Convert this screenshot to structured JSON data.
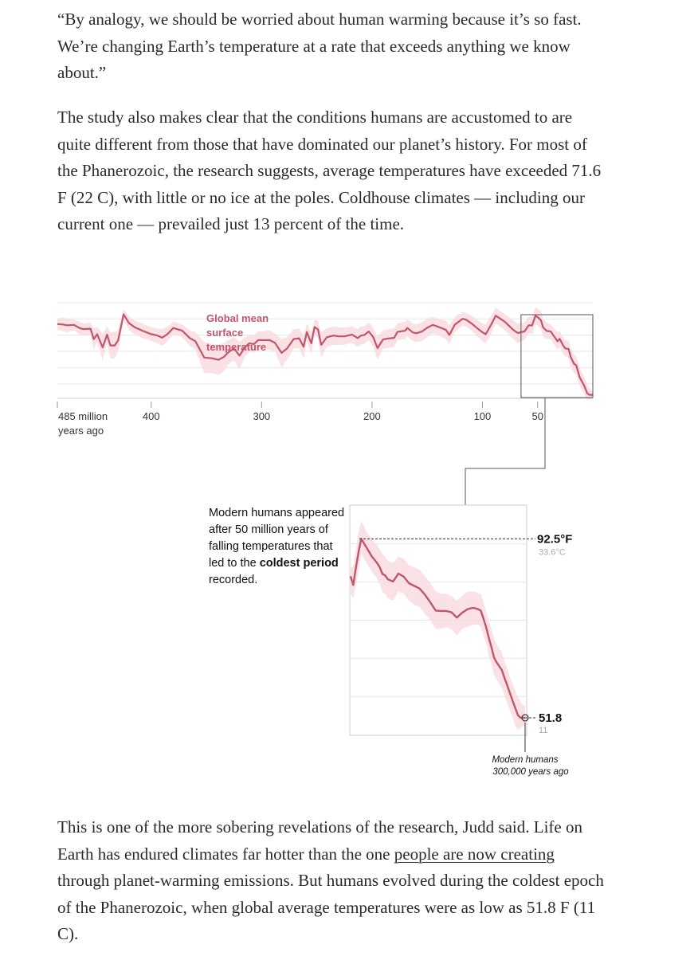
{
  "article": {
    "quote": "“By analogy, we should be worried about human warming because it’s so fast. We’re changing Earth’s temperature at a rate that exceeds anything we know about.”",
    "paragraph2": "The study also makes clear that the conditions humans are accustomed to are quite different from those that have dominated our planet’s history. For most of the Phanerozoic, the research suggests, average temperatures have exceeded 71.6 F (22 C), with little or no ice at the poles. Coldhouse climates — including our current one — prevailed just 13 percent of the time.",
    "paragraph3": {
      "before_link": "This is one of the more sobering revelations of the research, Judd said. Life on Earth has endured climates far hotter than the one ",
      "link_text": "people are now creating",
      "after_link": " through planet-warming emissions. But humans evolved during the coldest epoch of the Phanerozoic, when global average temperatures were as low as 51.8 F (11 C)."
    }
  },
  "colors": {
    "line": "#c0566a",
    "band": "#f7d9df",
    "grid": "#e6e6e6",
    "axis_text": "#333333"
  },
  "chart_data": [
    {
      "type": "area",
      "title": "Global mean surface temperature",
      "label_lines": [
        "Global mean",
        "surface",
        "temperature"
      ],
      "xlabel": "",
      "ylabel": "",
      "x_reversed": true,
      "x_unit_label": "485 million years ago",
      "xlim": [
        485,
        0
      ],
      "ylim": [
        50,
        100
      ],
      "grid": true,
      "x_ticks": [
        {
          "value": 485,
          "label": "485 million",
          "label2": "years ago"
        },
        {
          "value": 400,
          "label": "400"
        },
        {
          "value": 300,
          "label": "300"
        },
        {
          "value": 200,
          "label": "200"
        },
        {
          "value": 100,
          "label": "100"
        },
        {
          "value": 50,
          "label": "50"
        }
      ],
      "series": [
        {
          "x": [
            485,
            480,
            476,
            470,
            465,
            462,
            455,
            452,
            449,
            444,
            440,
            437,
            433,
            430,
            425,
            420,
            415,
            408,
            400,
            395,
            390,
            385,
            380,
            372,
            365,
            360,
            352,
            345,
            339,
            334,
            330,
            325,
            320,
            315,
            311,
            307,
            303,
            298,
            293,
            288,
            282,
            277,
            271,
            266,
            262,
            259,
            255,
            252,
            249,
            246,
            241,
            235,
            230,
            225,
            218,
            213,
            210,
            207,
            203,
            199,
            195,
            190,
            185,
            180,
            177,
            170,
            168,
            163,
            160,
            155,
            150,
            145,
            140,
            133,
            130,
            125,
            118,
            115,
            110,
            105,
            100,
            97,
            92,
            88,
            80,
            72,
            68,
            62,
            58,
            55,
            52,
            50,
            47,
            45,
            42,
            40,
            38,
            35,
            32,
            30,
            27,
            25,
            22,
            20,
            17,
            15,
            12,
            10,
            8,
            5,
            3,
            1,
            0
          ],
          "y": [
            88.2,
            88,
            87.6,
            87.8,
            86.2,
            85.6,
            85.8,
            80.4,
            83,
            76.2,
            82.8,
            77.2,
            77.2,
            79.8,
            93.2,
            88.6,
            86.6,
            84.8,
            83,
            82.4,
            81.2,
            83.2,
            86.2,
            84.8,
            81,
            79.4,
            71,
            70.6,
            69.8,
            71.4,
            73.8,
            75.6,
            72,
            76.4,
            78.3,
            77.9,
            80,
            79.9,
            80,
            78.6,
            73.4,
            75.6,
            80.5,
            80.9,
            76.5,
            84.1,
            78.3,
            86.7,
            85.5,
            77.5,
            81.4,
            82.3,
            81.9,
            81.9,
            82.8,
            81,
            82.3,
            82.6,
            84.4,
            81.6,
            75.8,
            80.3,
            80.8,
            81.1,
            84.2,
            84.8,
            86.2,
            83.9,
            83.5,
            84.3,
            86.3,
            87.8,
            86.8,
            85.2,
            82.6,
            87.9,
            90.9,
            90.5,
            88.6,
            86.2,
            84,
            83,
            88,
            92.5,
            89.5,
            85.2,
            83.6,
            84.4,
            87.6,
            87.5,
            92.5,
            91.8,
            90.2,
            86.5,
            84.7,
            84.6,
            84.3,
            81.8,
            79.4,
            80.6,
            77.3,
            75.7,
            75.4,
            71.3,
            67.8,
            67,
            60.9,
            58.8,
            56.8,
            52.5,
            51.8,
            51.8,
            51.8
          ],
          "upper": [
            91,
            91.5,
            91,
            90.5,
            89.5,
            88.5,
            89,
            86,
            87,
            83,
            87,
            84,
            84,
            85,
            96,
            92,
            90,
            88.5,
            86.5,
            86,
            85.5,
            87,
            89.5,
            88,
            85,
            84,
            79,
            78,
            77.5,
            78.5,
            80,
            81.5,
            79,
            81.5,
            82.5,
            82.5,
            84.5,
            84.5,
            85,
            83.5,
            80.5,
            81.5,
            85.5,
            86,
            82.5,
            88.5,
            84,
            90.5,
            90,
            84,
            86,
            87,
            86.5,
            86.5,
            87,
            85.5,
            87,
            87,
            89,
            86.5,
            81.5,
            85,
            85.5,
            86,
            88.5,
            89.5,
            90.5,
            88.5,
            88,
            89,
            91,
            92,
            91,
            90,
            87.5,
            92,
            94.5,
            94,
            92.5,
            90.5,
            88.5,
            88,
            92.5,
            96.5,
            93.5,
            90,
            88.5,
            89,
            92,
            92,
            97,
            96,
            95,
            91,
            89,
            88.5,
            88,
            86,
            84,
            84.5,
            81.5,
            80,
            79.5,
            76,
            72.5,
            71.5,
            65.5,
            63.5,
            61.5,
            57,
            55,
            54,
            53
          ],
          "lower": [
            85.5,
            84.5,
            84,
            85,
            83,
            82.5,
            82.5,
            75,
            79,
            69.5,
            78.5,
            70.5,
            70.5,
            74.5,
            90.5,
            85,
            83,
            81,
            79.5,
            78.5,
            77,
            79.5,
            83,
            81.5,
            77,
            75,
            63,
            63,
            62,
            64,
            67.5,
            69.5,
            65,
            71.5,
            74,
            73.5,
            75.5,
            75.5,
            75,
            74,
            66,
            70,
            75.5,
            76,
            70.5,
            79.5,
            72.5,
            83,
            81,
            71,
            76.5,
            77.5,
            77.5,
            77.5,
            78.5,
            76.5,
            77.5,
            78,
            80,
            76.5,
            70,
            75.5,
            76,
            76.5,
            80,
            80.5,
            82,
            79.5,
            79,
            79.5,
            81.5,
            83.5,
            82.5,
            80.5,
            78,
            84,
            87.5,
            87,
            85,
            82,
            79.5,
            78,
            83.5,
            88.5,
            85.5,
            80.5,
            78.5,
            80,
            83.5,
            83,
            88,
            87.5,
            85.5,
            82,
            80.5,
            80.5,
            80.5,
            77.5,
            75,
            76.5,
            73,
            71.5,
            71,
            66.5,
            63,
            62.5,
            56.5,
            54.5,
            52.5,
            49,
            49.5,
            49.5,
            50
          ]
        }
      ],
      "zoom_box": {
        "x_from": 65,
        "x_to": 0
      }
    },
    {
      "type": "area",
      "title": "",
      "xlabel": "",
      "ylabel": "",
      "x_reversed": true,
      "xlim": [
        66,
        0
      ],
      "ylim": [
        48,
        100
      ],
      "grid": true,
      "series": [
        {
          "x": [
            66,
            65,
            64,
            63,
            62,
            61,
            60,
            58,
            56,
            55,
            54,
            53,
            52,
            50,
            48,
            46,
            44,
            42,
            40,
            38,
            36,
            34,
            32,
            30,
            28,
            26,
            24,
            22,
            20,
            19,
            18,
            17,
            16,
            15,
            14,
            13,
            12,
            11,
            10,
            9,
            8,
            7,
            6,
            5,
            4,
            3,
            2,
            1,
            0.3
          ],
          "y": [
            84,
            82,
            86,
            89.5,
            92.5,
            91.5,
            90.5,
            88.5,
            87,
            86,
            84.5,
            84.2,
            83.3,
            82.8,
            84.6,
            83.9,
            82.4,
            81.8,
            81.2,
            79.8,
            78.1,
            76.2,
            76.1,
            76.1,
            75.8,
            74.6,
            75.7,
            76.5,
            76.8,
            76.7,
            76.5,
            76.2,
            74.4,
            72.5,
            70.1,
            67.9,
            65.5,
            64.4,
            63.5,
            62.6,
            60.8,
            59.1,
            57.4,
            55.7,
            54,
            52.4,
            51.8,
            51.8,
            51.8
          ],
          "upper": [
            86,
            86,
            90,
            94,
            96.5,
            95.5,
            94,
            92.5,
            91,
            90,
            89,
            88.5,
            87.5,
            87,
            88.5,
            88,
            86.5,
            86,
            85.5,
            84,
            82.5,
            80.5,
            80,
            80,
            79.5,
            78.5,
            79.5,
            80.5,
            80.5,
            80.5,
            80,
            80,
            78,
            76,
            74,
            72,
            70,
            68.5,
            67.5,
            66.5,
            64.5,
            63,
            61,
            59.5,
            58,
            56.5,
            55.5,
            54.5,
            55
          ],
          "lower": [
            80,
            79,
            82,
            85,
            89,
            88,
            87,
            85,
            83.5,
            82,
            80.5,
            80,
            79,
            78.5,
            80.5,
            80,
            78.5,
            77.5,
            77,
            75.5,
            74,
            72,
            72,
            72.5,
            72,
            70.5,
            72,
            72.5,
            73,
            73,
            73,
            72.5,
            70.5,
            69,
            66,
            64,
            61.5,
            60.5,
            59.5,
            58.5,
            57,
            55,
            53.5,
            52,
            50,
            49,
            49.5,
            50,
            50
          ]
        }
      ],
      "max_label": {
        "f": "92.5°F",
        "c": "33.6°C",
        "y": 92.5
      },
      "min_label": {
        "f": "51.8",
        "c": "11",
        "y": 51.8
      },
      "annotation": {
        "before_bold": "Modern humans appeared after 50 million years of falling temperatures that led to the ",
        "bold": "coldest period",
        "after_bold": " recorded.",
        "marker_lines": [
          "Modern humans",
          "300,000 years ago"
        ]
      }
    }
  ]
}
